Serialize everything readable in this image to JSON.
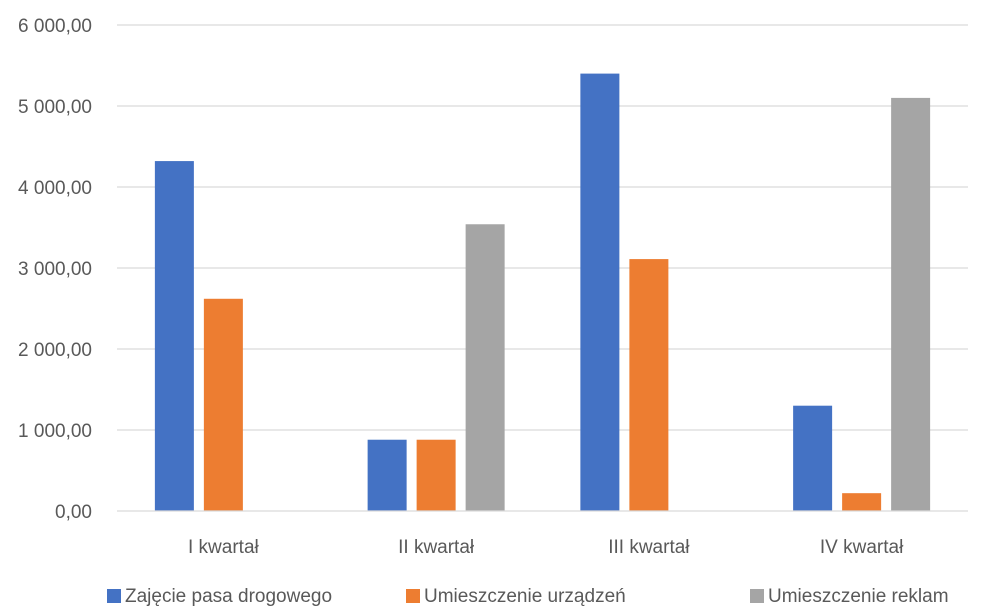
{
  "chart_data": {
    "type": "bar",
    "categories": [
      "I kwartał",
      "II kwartał",
      "III kwartał",
      "IV kwartał"
    ],
    "series": [
      {
        "name": "Zajęcie pasa drogowego",
        "color": "#4472c4",
        "values": [
          4320,
          880,
          5400,
          1300
        ]
      },
      {
        "name": "Umieszczenie urządzeń",
        "color": "#ed7d31",
        "values": [
          2620,
          880,
          3110,
          220
        ]
      },
      {
        "name": "Umieszczenie reklam",
        "color": "#a5a5a5",
        "values": [
          0,
          3540,
          0,
          5100
        ]
      }
    ],
    "y_ticks": [
      "0,00",
      "1 000,00",
      "2 000,00",
      "3 000,00",
      "4 000,00",
      "5 000,00",
      "6 000,00"
    ],
    "ylim": [
      0,
      6000
    ],
    "grid": true,
    "legend": "bottom"
  }
}
